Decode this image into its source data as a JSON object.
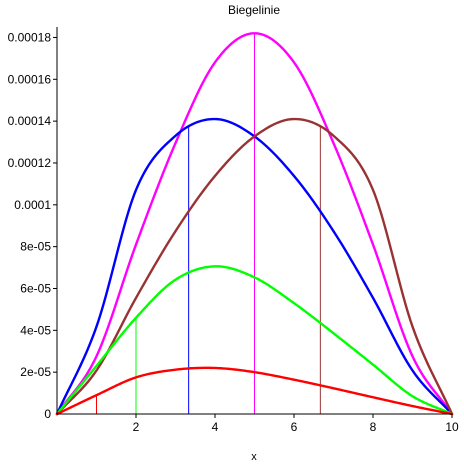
{
  "chart_data": {
    "type": "line",
    "title": "Biegelinie",
    "xlabel": "x",
    "ylabel": "",
    "xlim": [
      0,
      10
    ],
    "ylim": [
      0,
      0.000185
    ],
    "x_ticks": [
      {
        "value": 0,
        "label": "0"
      },
      {
        "value": 2,
        "label": "2"
      },
      {
        "value": 4,
        "label": "4"
      },
      {
        "value": 6,
        "label": "6"
      },
      {
        "value": 8,
        "label": "8"
      },
      {
        "value": 10,
        "label": "10"
      }
    ],
    "y_ticks": [
      {
        "value": 0,
        "label": "0"
      },
      {
        "value": 2e-05,
        "label": "2e-05"
      },
      {
        "value": 4e-05,
        "label": "4e-05"
      },
      {
        "value": 6e-05,
        "label": "6e-05"
      },
      {
        "value": 8e-05,
        "label": "8e-05"
      },
      {
        "value": 0.0001,
        "label": "0.0001"
      },
      {
        "value": 0.00012,
        "label": "0.00012"
      },
      {
        "value": 0.00014,
        "label": "0.00014"
      },
      {
        "value": 0.00016,
        "label": "0.00016"
      },
      {
        "value": 0.00018,
        "label": "0.00018"
      }
    ],
    "grid": false,
    "series": [
      {
        "color": "#ff00ff",
        "load_position": 5.0,
        "x": [
          0,
          1,
          2,
          3,
          4,
          5,
          6,
          7,
          8,
          9,
          10
        ],
        "y": [
          0,
          2.76e-05,
          8.1e-05,
          0.0001295,
          0.0001681,
          0.000182,
          0.0001681,
          0.0001295,
          8.1e-05,
          2.76e-05,
          0
        ]
      },
      {
        "color": "#0000ff",
        "load_position": 3.333,
        "x": [
          0,
          1,
          2,
          3,
          4,
          5,
          6,
          7,
          8,
          9,
          10
        ],
        "y": [
          0,
          4.18e-05,
          0.0001071,
          0.000133,
          0.000141,
          0.0001327,
          0.0001138,
          8.74e-05,
          5.55e-05,
          2.08e-05,
          0
        ]
      },
      {
        "color": "#993333",
        "load_position": 6.667,
        "x": [
          0,
          1,
          2,
          3,
          4,
          5,
          6,
          7,
          8,
          9,
          10
        ],
        "y": [
          0,
          2.08e-05,
          5.55e-05,
          8.74e-05,
          0.0001138,
          0.0001327,
          0.000141,
          0.000133,
          0.0001071,
          4.18e-05,
          0
        ]
      },
      {
        "color": "#00ff00",
        "load_position": 2.0,
        "x": [
          0,
          1,
          2,
          3,
          4,
          5,
          6,
          7,
          8,
          9,
          10
        ],
        "y": [
          0,
          2.3e-05,
          4.6e-05,
          6.42e-05,
          7.06e-05,
          6.53e-05,
          5.3e-05,
          3.86e-05,
          2.36e-05,
          8.5e-06,
          0
        ]
      },
      {
        "color": "#ff0000",
        "load_position": 1.0,
        "x": [
          0,
          1,
          2,
          3,
          4,
          5,
          6,
          7,
          8,
          9,
          10
        ],
        "y": [
          0,
          9e-06,
          1.75e-05,
          2.12e-05,
          2.2e-05,
          2e-05,
          1.64e-05,
          1.23e-05,
          8e-06,
          3.8e-06,
          0
        ]
      }
    ]
  }
}
